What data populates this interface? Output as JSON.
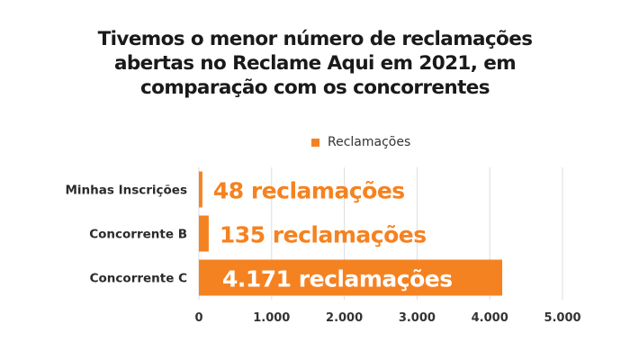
{
  "chart_data": {
    "type": "bar",
    "orientation": "horizontal",
    "title_lines": [
      "Tivemos o menor número de reclamações",
      "abertas no Reclame Aqui em 2021, em",
      "comparação com os concorrentes"
    ],
    "categories": [
      "Minhas Inscrições",
      "Concorrente B",
      "Concorrente C"
    ],
    "series": [
      {
        "name": "Reclamações",
        "values": [
          48,
          135,
          4171
        ],
        "data_labels": [
          "48 reclamações",
          "135 reclamações",
          "4.171 reclamações"
        ]
      }
    ],
    "xlim": [
      0,
      5000
    ],
    "x_ticks": [
      0,
      1000,
      2000,
      3000,
      4000,
      5000
    ],
    "x_tick_labels": [
      "0",
      "1.000",
      "2.000",
      "3.000",
      "4.000",
      "5.000"
    ],
    "grid": "vertical",
    "legend_position": "top",
    "colors": {
      "bar": "#f58220",
      "label_on_bar": "#ffffff",
      "label_outside": "#f58220",
      "grid": "#dddddd"
    }
  }
}
